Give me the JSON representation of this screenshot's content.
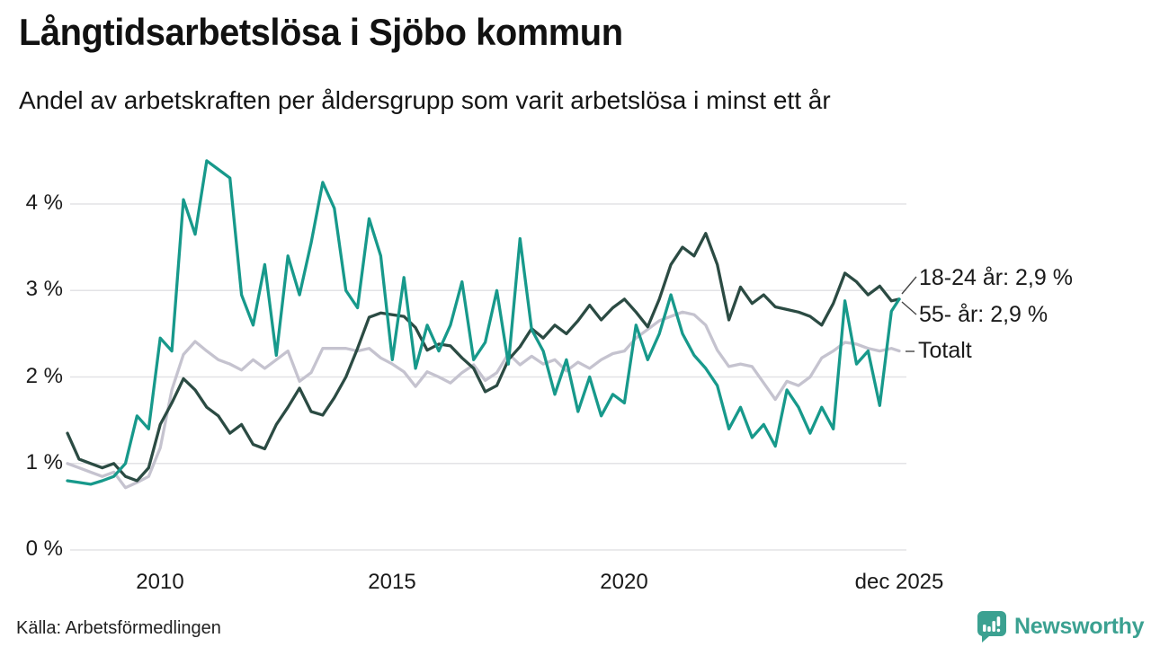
{
  "header": {
    "title": "Långtidsarbetslösa i Sjöbo kommun",
    "subtitle": "Andel av arbetskraften per åldersgrupp som varit arbetslösa i minst ett år"
  },
  "footer": {
    "source": "Källa: Arbetsförmedlingen",
    "brand": "Newsworthy",
    "brand_color": "#3ba191"
  },
  "chart_data": {
    "type": "line",
    "title": "Långtidsarbetslösa i Sjöbo kommun",
    "subtitle": "Andel av arbetskraften per åldersgrupp som varit arbetslösa i minst ett år",
    "x_unit": "year (monthly series, approximated quarterly)",
    "xlim": [
      2008,
      2026.2
    ],
    "ylim": [
      0,
      4.65
    ],
    "grid": "horizontal",
    "grid_color": "#e3e3e6",
    "yticks": [
      {
        "v": 4,
        "label": "4 %"
      },
      {
        "v": 3,
        "label": "3 %"
      },
      {
        "v": 2,
        "label": "2 %"
      },
      {
        "v": 1,
        "label": "1 %"
      },
      {
        "v": 0,
        "label": "0 %"
      }
    ],
    "xticks": [
      {
        "v": 2010,
        "label": "2010"
      },
      {
        "v": 2015,
        "label": "2015"
      },
      {
        "v": 2020,
        "label": "2020"
      },
      {
        "v": 2025.92,
        "label": "dec 2025"
      }
    ],
    "x": [
      2008.0,
      2008.25,
      2008.5,
      2008.75,
      2009.0,
      2009.25,
      2009.5,
      2009.75,
      2010.0,
      2010.25,
      2010.5,
      2010.75,
      2011.0,
      2011.25,
      2011.5,
      2011.75,
      2012.0,
      2012.25,
      2012.5,
      2012.75,
      2013.0,
      2013.25,
      2013.5,
      2013.75,
      2014.0,
      2014.25,
      2014.5,
      2014.75,
      2015.0,
      2015.25,
      2015.5,
      2015.75,
      2016.0,
      2016.25,
      2016.5,
      2016.75,
      2017.0,
      2017.25,
      2017.5,
      2017.75,
      2018.0,
      2018.25,
      2018.5,
      2018.75,
      2019.0,
      2019.25,
      2019.5,
      2019.75,
      2020.0,
      2020.25,
      2020.5,
      2020.75,
      2021.0,
      2021.25,
      2021.5,
      2021.75,
      2022.0,
      2022.25,
      2022.5,
      2022.75,
      2023.0,
      2023.25,
      2023.5,
      2023.75,
      2024.0,
      2024.25,
      2024.5,
      2024.75,
      2025.0,
      2025.25,
      2025.5,
      2025.75,
      2025.92
    ],
    "series": [
      {
        "name": "18-24 år",
        "color": "#17998b",
        "last_value_label": "18-24 år: 2,9 %",
        "last_value": 2.9,
        "values": [
          0.8,
          0.78,
          0.76,
          0.8,
          0.85,
          1.0,
          1.55,
          1.4,
          2.45,
          2.3,
          4.05,
          3.65,
          4.5,
          4.4,
          4.3,
          2.95,
          2.6,
          3.3,
          2.25,
          3.4,
          2.95,
          3.55,
          4.25,
          3.95,
          3.0,
          2.8,
          3.83,
          3.4,
          2.2,
          3.15,
          2.1,
          2.6,
          2.3,
          2.6,
          3.1,
          2.2,
          2.4,
          3.0,
          2.15,
          3.6,
          2.55,
          2.3,
          1.8,
          2.2,
          1.6,
          2.0,
          1.55,
          1.8,
          1.7,
          2.6,
          2.2,
          2.5,
          2.95,
          2.5,
          2.25,
          2.1,
          1.9,
          1.4,
          1.65,
          1.3,
          1.45,
          1.2,
          1.85,
          1.65,
          1.35,
          1.65,
          1.4,
          2.88,
          2.15,
          2.3,
          1.67,
          2.76,
          2.9
        ]
      },
      {
        "name": "55- år",
        "color": "#2b4b43",
        "last_value_label": "55- år: 2,9 %",
        "last_value": 2.9,
        "values": [
          1.35,
          1.05,
          1.0,
          0.95,
          1.0,
          0.85,
          0.8,
          0.95,
          1.45,
          1.7,
          1.98,
          1.85,
          1.65,
          1.55,
          1.35,
          1.45,
          1.22,
          1.17,
          1.45,
          1.65,
          1.87,
          1.6,
          1.56,
          1.76,
          2.0,
          2.33,
          2.69,
          2.74,
          2.72,
          2.7,
          2.57,
          2.31,
          2.38,
          2.36,
          2.22,
          2.1,
          1.83,
          1.9,
          2.2,
          2.35,
          2.56,
          2.45,
          2.6,
          2.5,
          2.65,
          2.83,
          2.66,
          2.8,
          2.9,
          2.75,
          2.58,
          2.9,
          3.3,
          3.5,
          3.4,
          3.66,
          3.3,
          2.66,
          3.04,
          2.85,
          2.95,
          2.81,
          2.78,
          2.75,
          2.7,
          2.6,
          2.85,
          3.2,
          3.1,
          2.95,
          3.05,
          2.88,
          2.9
        ]
      },
      {
        "name": "Totalt",
        "color": "#c5c3cf",
        "last_value_label": "Totalt",
        "last_value": 2.3,
        "values": [
          1.0,
          0.95,
          0.9,
          0.85,
          0.9,
          0.72,
          0.78,
          0.85,
          1.18,
          1.85,
          2.26,
          2.41,
          2.3,
          2.2,
          2.15,
          2.08,
          2.2,
          2.1,
          2.2,
          2.3,
          1.95,
          2.05,
          2.33,
          2.33,
          2.33,
          2.3,
          2.33,
          2.22,
          2.15,
          2.06,
          1.89,
          2.06,
          2.0,
          1.93,
          2.05,
          2.14,
          1.96,
          2.05,
          2.27,
          2.14,
          2.24,
          2.15,
          2.2,
          2.07,
          2.17,
          2.1,
          2.2,
          2.27,
          2.3,
          2.45,
          2.55,
          2.65,
          2.7,
          2.75,
          2.72,
          2.6,
          2.31,
          2.12,
          2.15,
          2.12,
          1.93,
          1.74,
          1.95,
          1.9,
          2.0,
          2.22,
          2.3,
          2.4,
          2.38,
          2.33,
          2.3,
          2.33,
          2.3
        ]
      }
    ],
    "legend_position": "end-of-line labels, right side"
  }
}
